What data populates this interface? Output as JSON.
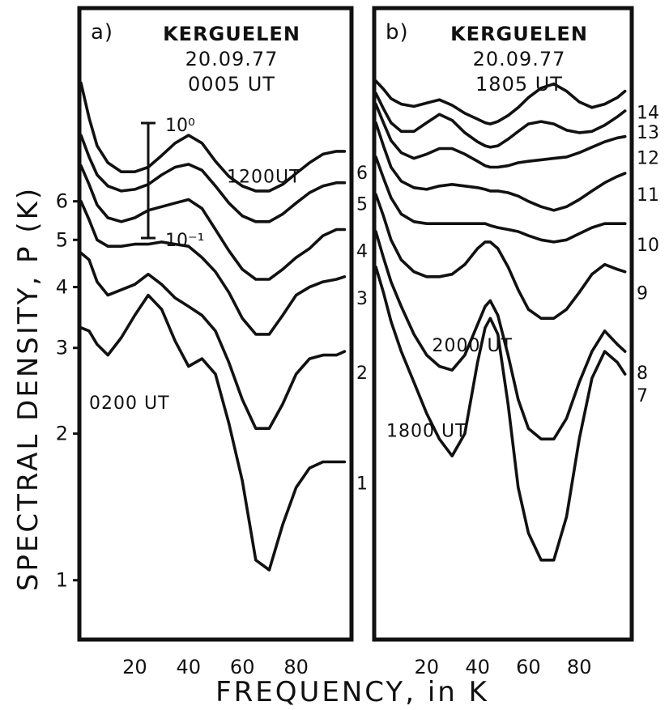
{
  "figure": {
    "y_axis_title": "SPECTRAL DENSITY,   P (K)",
    "x_axis_title": "FREQUENCY, in  K",
    "scale_bar": {
      "top_label": "10⁰",
      "bottom_label": "10⁻¹"
    }
  },
  "chart_data": [
    {
      "type": "line",
      "panel_label": "a)",
      "title": "KERGUELEN",
      "subtitle_date": "20.09.77",
      "subtitle_time": "0005 UT",
      "xlim": [
        0,
        100
      ],
      "x_ticks": [
        20,
        40,
        60,
        80
      ],
      "y_ticks": [
        1,
        2,
        3,
        4,
        5,
        6
      ],
      "ylim": [
        0.8,
        10.6
      ],
      "y_scale": "log-offset stacked spectra",
      "annotations": [
        {
          "text": "1200UT",
          "x": 68,
          "y": 6.55
        },
        {
          "text": "0200 UT",
          "x": 18,
          "y": 2.25
        }
      ],
      "series": [
        {
          "name": "1",
          "x": [
            0,
            3,
            6,
            10,
            15,
            20,
            25,
            30,
            35,
            40,
            45,
            50,
            55,
            60,
            65,
            70,
            75,
            80,
            85,
            90,
            95,
            98
          ],
          "y": [
            3.3,
            3.25,
            3.05,
            2.9,
            3.15,
            3.5,
            3.85,
            3.6,
            3.1,
            2.75,
            2.85,
            2.65,
            2.1,
            1.6,
            1.1,
            1.05,
            1.3,
            1.55,
            1.7,
            1.75,
            1.75,
            1.75
          ]
        },
        {
          "name": "2",
          "x": [
            0,
            3,
            6,
            10,
            15,
            20,
            25,
            30,
            35,
            40,
            45,
            50,
            55,
            60,
            65,
            70,
            75,
            80,
            85,
            90,
            95,
            98
          ],
          "y": [
            4.7,
            4.55,
            4.1,
            3.85,
            3.95,
            4.05,
            4.25,
            4.05,
            3.8,
            3.65,
            3.5,
            3.25,
            2.8,
            2.35,
            2.05,
            2.05,
            2.3,
            2.65,
            2.85,
            2.9,
            2.9,
            2.95
          ]
        },
        {
          "name": "3",
          "x": [
            0,
            3,
            6,
            10,
            15,
            20,
            25,
            30,
            35,
            40,
            45,
            50,
            55,
            60,
            65,
            70,
            75,
            80,
            85,
            90,
            95,
            98
          ],
          "y": [
            6.0,
            5.5,
            5.0,
            4.85,
            4.85,
            4.9,
            4.9,
            4.95,
            4.9,
            4.85,
            4.6,
            4.3,
            3.9,
            3.45,
            3.2,
            3.2,
            3.5,
            3.85,
            4.0,
            4.1,
            4.15,
            4.2
          ]
        },
        {
          "name": "4",
          "x": [
            0,
            3,
            6,
            10,
            15,
            20,
            25,
            30,
            35,
            40,
            45,
            50,
            55,
            60,
            65,
            70,
            75,
            80,
            85,
            90,
            95,
            98
          ],
          "y": [
            7.1,
            6.5,
            5.9,
            5.55,
            5.45,
            5.55,
            5.75,
            5.85,
            5.95,
            6.05,
            5.8,
            5.25,
            4.75,
            4.35,
            4.15,
            4.15,
            4.35,
            4.6,
            4.8,
            5.1,
            5.25,
            5.25
          ]
        },
        {
          "name": "5",
          "x": [
            0,
            3,
            6,
            10,
            15,
            20,
            25,
            30,
            35,
            40,
            45,
            50,
            55,
            60,
            65,
            70,
            75,
            80,
            85,
            90,
            95,
            98
          ],
          "y": [
            8.2,
            7.4,
            6.8,
            6.45,
            6.3,
            6.35,
            6.5,
            6.8,
            7.05,
            7.15,
            6.95,
            6.45,
            5.95,
            5.6,
            5.45,
            5.45,
            5.65,
            5.95,
            6.25,
            6.45,
            6.55,
            6.55
          ]
        },
        {
          "name": "6",
          "x": [
            0,
            3,
            6,
            10,
            15,
            20,
            25,
            30,
            35,
            40,
            45,
            50,
            55,
            60,
            65,
            70,
            75,
            80,
            85,
            90,
            95,
            98
          ],
          "y": [
            10.5,
            8.9,
            7.8,
            7.2,
            6.9,
            6.9,
            7.05,
            7.45,
            7.9,
            8.2,
            7.9,
            7.25,
            6.75,
            6.45,
            6.3,
            6.3,
            6.5,
            6.85,
            7.2,
            7.5,
            7.6,
            7.6
          ]
        }
      ]
    },
    {
      "type": "line",
      "panel_label": "b)",
      "title": "KERGUELEN",
      "subtitle_date": "20.09.77",
      "subtitle_time": "1805 UT",
      "xlim": [
        0,
        100
      ],
      "x_ticks": [
        20,
        40,
        60,
        80
      ],
      "y_ticks": [],
      "ylim": [
        0.8,
        10.6
      ],
      "annotations": [
        {
          "text": "2000   UT",
          "x": 38,
          "y": 2.95
        },
        {
          "text": "1800 UT",
          "x": 20,
          "y": 1.97
        }
      ],
      "series": [
        {
          "name": "7",
          "x": [
            0,
            3,
            6,
            10,
            15,
            20,
            25,
            30,
            35,
            40,
            43,
            45,
            48,
            52,
            56,
            60,
            65,
            70,
            75,
            80,
            85,
            90,
            95,
            98
          ],
          "y": [
            4.4,
            3.9,
            3.4,
            2.95,
            2.55,
            2.2,
            1.95,
            1.8,
            2.0,
            2.8,
            3.3,
            3.45,
            3.2,
            2.3,
            1.55,
            1.25,
            1.1,
            1.1,
            1.35,
            1.95,
            2.6,
            2.95,
            2.8,
            2.65
          ]
        },
        {
          "name": "8",
          "x": [
            0,
            3,
            6,
            10,
            15,
            20,
            25,
            30,
            35,
            40,
            43,
            45,
            48,
            52,
            56,
            60,
            65,
            70,
            75,
            80,
            85,
            90,
            95,
            98
          ],
          "y": [
            5.2,
            4.6,
            4.1,
            3.65,
            3.2,
            2.9,
            2.75,
            2.7,
            2.9,
            3.35,
            3.65,
            3.75,
            3.5,
            2.9,
            2.35,
            2.05,
            1.95,
            1.95,
            2.15,
            2.55,
            2.95,
            3.25,
            3.05,
            2.95
          ]
        },
        {
          "name": "9",
          "x": [
            0,
            3,
            6,
            10,
            15,
            20,
            25,
            30,
            35,
            40,
            43,
            45,
            48,
            52,
            56,
            60,
            65,
            70,
            75,
            80,
            85,
            90,
            95,
            98
          ],
          "y": [
            6.2,
            5.6,
            5.0,
            4.55,
            4.3,
            4.2,
            4.2,
            4.25,
            4.45,
            4.8,
            4.95,
            4.95,
            4.8,
            4.4,
            3.95,
            3.6,
            3.45,
            3.45,
            3.6,
            3.9,
            4.25,
            4.45,
            4.35,
            4.3
          ]
        },
        {
          "name": "10",
          "x": [
            0,
            3,
            6,
            10,
            15,
            20,
            25,
            30,
            35,
            40,
            43,
            45,
            48,
            52,
            56,
            60,
            65,
            70,
            75,
            80,
            85,
            90,
            95,
            98
          ],
          "y": [
            7.4,
            6.7,
            6.1,
            5.65,
            5.45,
            5.4,
            5.4,
            5.4,
            5.4,
            5.4,
            5.4,
            5.35,
            5.3,
            5.25,
            5.2,
            5.1,
            5.0,
            4.95,
            5.0,
            5.15,
            5.3,
            5.4,
            5.4,
            5.4
          ]
        },
        {
          "name": "11",
          "x": [
            0,
            3,
            6,
            10,
            15,
            20,
            25,
            30,
            35,
            40,
            43,
            45,
            48,
            52,
            56,
            60,
            65,
            70,
            75,
            80,
            85,
            90,
            95,
            98
          ],
          "y": [
            8.7,
            7.8,
            7.05,
            6.6,
            6.4,
            6.35,
            6.45,
            6.5,
            6.45,
            6.4,
            6.35,
            6.3,
            6.3,
            6.25,
            6.15,
            6.0,
            5.85,
            5.75,
            5.85,
            6.05,
            6.3,
            6.55,
            6.75,
            6.85
          ]
        },
        {
          "name": "12",
          "x": [
            0,
            3,
            6,
            10,
            15,
            20,
            25,
            30,
            35,
            40,
            43,
            45,
            48,
            52,
            56,
            60,
            65,
            70,
            75,
            80,
            85,
            90,
            95,
            98
          ],
          "y": [
            9.5,
            8.7,
            8.0,
            7.55,
            7.35,
            7.5,
            7.7,
            7.7,
            7.5,
            7.25,
            7.1,
            7.05,
            7.05,
            7.1,
            7.2,
            7.25,
            7.3,
            7.35,
            7.4,
            7.55,
            7.75,
            7.95,
            8.1,
            8.15
          ]
        },
        {
          "name": "13",
          "x": [
            0,
            3,
            6,
            10,
            15,
            20,
            25,
            30,
            35,
            40,
            43,
            45,
            48,
            52,
            56,
            60,
            65,
            70,
            75,
            80,
            85,
            90,
            95,
            98
          ],
          "y": [
            10.0,
            9.3,
            8.7,
            8.35,
            8.35,
            8.7,
            9.05,
            8.8,
            8.3,
            7.95,
            7.8,
            7.75,
            7.8,
            8.05,
            8.35,
            8.65,
            8.75,
            8.65,
            8.4,
            8.3,
            8.35,
            8.6,
            8.95,
            9.2
          ]
        },
        {
          "name": "14",
          "x": [
            0,
            3,
            6,
            10,
            15,
            20,
            25,
            30,
            35,
            40,
            43,
            45,
            48,
            52,
            56,
            60,
            65,
            70,
            75,
            80,
            85,
            90,
            95,
            98
          ],
          "y": [
            10.6,
            10.2,
            9.75,
            9.5,
            9.4,
            9.55,
            9.7,
            9.45,
            9.1,
            8.85,
            8.7,
            8.65,
            8.75,
            9.0,
            9.35,
            9.8,
            10.25,
            10.45,
            10.1,
            9.6,
            9.35,
            9.5,
            9.8,
            10.1
          ]
        }
      ]
    }
  ]
}
